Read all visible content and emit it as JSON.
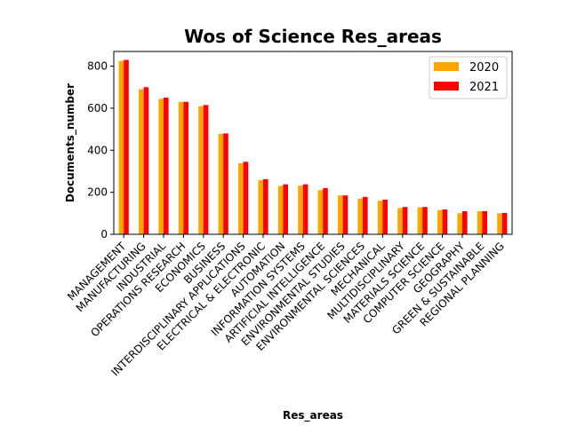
{
  "chart_data": {
    "type": "bar",
    "title": "Wos of Science Res_areas",
    "xlabel": "Res_areas",
    "ylabel": "Documents_number",
    "ylim": [
      0,
      870
    ],
    "yticks": [
      0,
      200,
      400,
      600,
      800
    ],
    "legend_position": "top-right",
    "categories": [
      "MANAGEMENT",
      "MANUFACTURING",
      "INDUSTRIAL",
      "OPERATIONS RESEARCH",
      "ECONOMICS",
      "BUSINESS",
      "INTERDISCIPLINARY APPLICATIONS",
      "ELECTRICAL & ELECTRONIC",
      "AUTOMATION",
      "INFORMATION SYSTEMS",
      "ARTIFICIAL INTELLIGENCE",
      "ENVIRONMENTAL STUDIES",
      "ENVIRONMENTAL SCIENCES",
      "MECHANICAL",
      "MULTIDISCIPLINARY",
      "MATERIALS SCIENCE",
      "COMPUTER SCIENCE",
      "GEOGRAPHY",
      "GREEN & SUSTAINABLE",
      "REGIONAL  PLANNING"
    ],
    "series": [
      {
        "name": "2020",
        "color": "#ffa500",
        "values": [
          825,
          690,
          645,
          630,
          610,
          478,
          338,
          258,
          230,
          232,
          210,
          185,
          170,
          160,
          125,
          128,
          115,
          100,
          110,
          100
        ]
      },
      {
        "name": "2021",
        "color": "#ff0000",
        "values": [
          830,
          700,
          650,
          630,
          615,
          480,
          345,
          262,
          238,
          238,
          220,
          185,
          178,
          165,
          130,
          130,
          118,
          110,
          110,
          102
        ]
      }
    ]
  }
}
